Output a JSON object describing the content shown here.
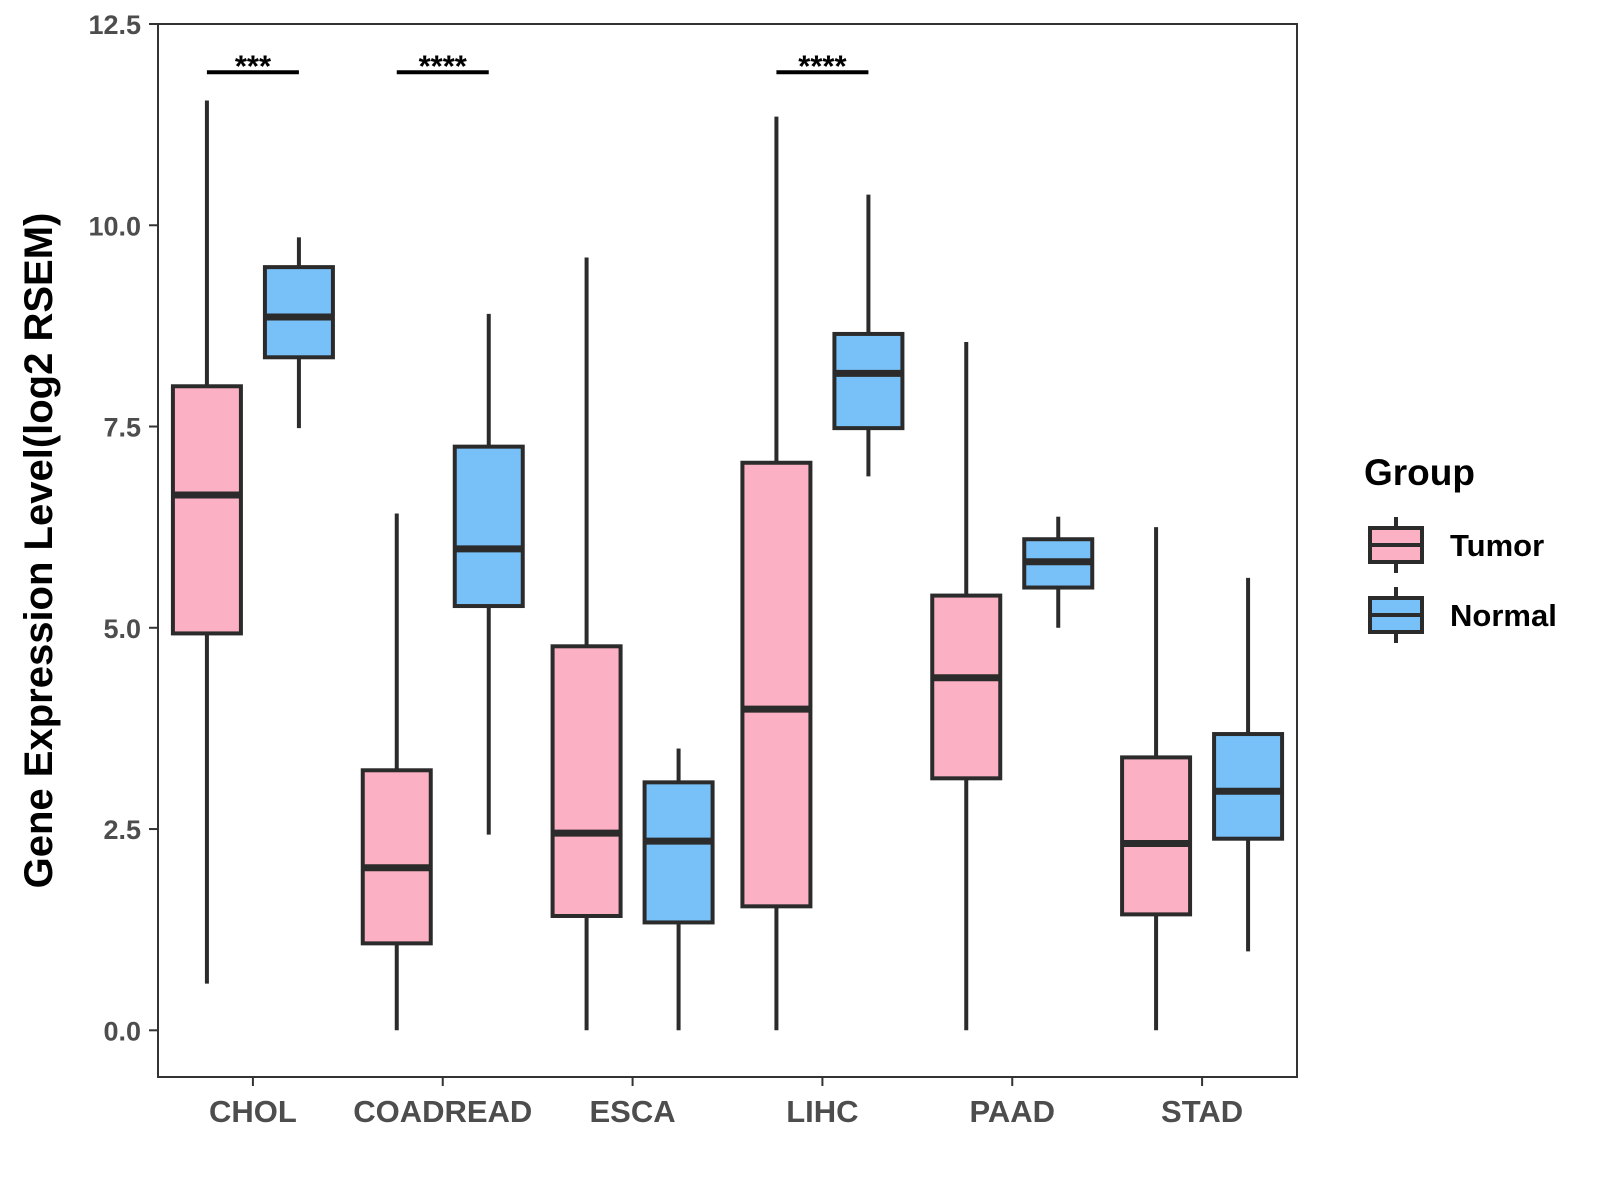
{
  "chart_data": {
    "type": "boxplot",
    "title": "",
    "xlabel": "",
    "ylabel": "Gene Expression Level(log2 RSEM)",
    "ylim": [
      -0.58,
      12.5
    ],
    "yticks": [
      "0.0",
      "2.5",
      "5.0",
      "7.5",
      "10.0",
      "12.5"
    ],
    "grid": false,
    "categories": [
      "CHOL",
      "COADREAD",
      "ESCA",
      "LIHC",
      "PAAD",
      "STAD"
    ],
    "legend": {
      "title": "Group",
      "position": "right",
      "entries": [
        {
          "label": "Tumor",
          "color": "#fbb1c3"
        },
        {
          "label": "Normal",
          "color": "#78c1f8"
        }
      ]
    },
    "series": [
      {
        "name": "Tumor",
        "color": "#fbb1c3",
        "boxes": [
          {
            "min": 0.58,
            "q1": 4.93,
            "median": 6.65,
            "q3": 8.0,
            "max": 11.55
          },
          {
            "min": 0.0,
            "q1": 1.08,
            "median": 2.02,
            "q3": 3.23,
            "max": 6.42
          },
          {
            "min": 0.0,
            "q1": 1.42,
            "median": 2.45,
            "q3": 4.77,
            "max": 9.6
          },
          {
            "min": 0.0,
            "q1": 1.54,
            "median": 3.99,
            "q3": 7.05,
            "max": 11.35
          },
          {
            "min": 0.0,
            "q1": 3.13,
            "median": 4.38,
            "q3": 5.4,
            "max": 8.55
          },
          {
            "min": 0.0,
            "q1": 1.44,
            "median": 2.32,
            "q3": 3.39,
            "max": 6.25
          }
        ]
      },
      {
        "name": "Normal",
        "color": "#78c1f8",
        "boxes": [
          {
            "min": 7.48,
            "q1": 8.36,
            "median": 8.86,
            "q3": 9.48,
            "max": 9.85
          },
          {
            "min": 2.43,
            "q1": 5.27,
            "median": 5.98,
            "q3": 7.25,
            "max": 8.9
          },
          {
            "min": 0.0,
            "q1": 1.34,
            "median": 2.35,
            "q3": 3.08,
            "max": 3.5
          },
          {
            "min": 6.88,
            "q1": 7.48,
            "median": 8.16,
            "q3": 8.65,
            "max": 10.38
          },
          {
            "min": 5.0,
            "q1": 5.5,
            "median": 5.82,
            "q3": 6.1,
            "max": 6.38
          },
          {
            "min": 0.98,
            "q1": 2.38,
            "median": 2.97,
            "q3": 3.68,
            "max": 5.62
          }
        ]
      }
    ],
    "annotations": [
      {
        "category": "CHOL",
        "label": "***",
        "y": 11.9
      },
      {
        "category": "COADREAD",
        "label": "****",
        "y": 11.9
      },
      {
        "category": "LIHC",
        "label": "****",
        "y": 11.9
      }
    ]
  }
}
